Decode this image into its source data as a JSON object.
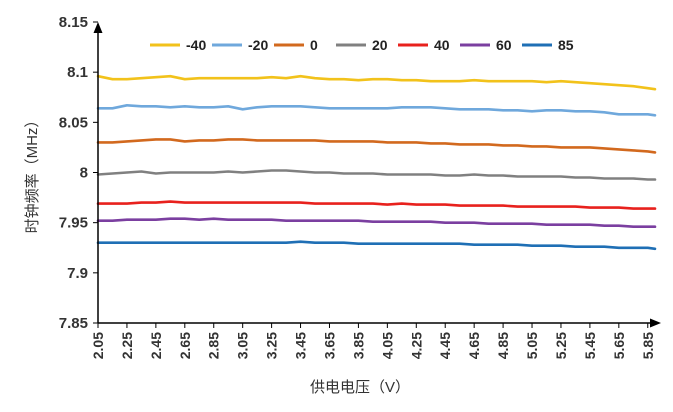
{
  "chart_data": {
    "type": "line",
    "xlabel": "供电电压（V）",
    "ylabel": "时钟频率（MHz）",
    "ylim": [
      7.85,
      8.15
    ],
    "yticks": [
      "8.15",
      "8.1",
      "8.05",
      "8",
      "7.95",
      "7.9",
      "7.85"
    ],
    "xlim": [
      2.05,
      5.9
    ],
    "xticks": [
      "2.05",
      "2.25",
      "2.45",
      "2.65",
      "2.85",
      "3.05",
      "3.25",
      "3.45",
      "3.65",
      "3.85",
      "4.05",
      "4.25",
      "4.45",
      "4.65",
      "4.85",
      "5.05",
      "5.25",
      "5.45",
      "5.65",
      "5.85"
    ],
    "x": [
      2.05,
      2.15,
      2.25,
      2.35,
      2.45,
      2.55,
      2.65,
      2.75,
      2.85,
      2.95,
      3.05,
      3.15,
      3.25,
      3.35,
      3.45,
      3.55,
      3.65,
      3.75,
      3.85,
      3.95,
      4.05,
      4.15,
      4.25,
      4.35,
      4.45,
      4.55,
      4.65,
      4.75,
      4.85,
      4.95,
      5.05,
      5.15,
      5.25,
      5.35,
      5.45,
      5.55,
      5.65,
      5.75,
      5.85,
      5.9
    ],
    "grid": false,
    "legend_position": "top",
    "series": [
      {
        "name": "-40",
        "color": "#f2c21b",
        "values": [
          8.096,
          8.093,
          8.093,
          8.094,
          8.095,
          8.096,
          8.093,
          8.094,
          8.094,
          8.094,
          8.094,
          8.094,
          8.095,
          8.094,
          8.096,
          8.094,
          8.093,
          8.093,
          8.092,
          8.093,
          8.093,
          8.092,
          8.092,
          8.091,
          8.091,
          8.091,
          8.092,
          8.091,
          8.091,
          8.091,
          8.091,
          8.09,
          8.091,
          8.09,
          8.089,
          8.088,
          8.087,
          8.086,
          8.084,
          8.083
        ]
      },
      {
        "name": "-20",
        "color": "#6fa8dc",
        "values": [
          8.064,
          8.064,
          8.067,
          8.066,
          8.066,
          8.065,
          8.066,
          8.065,
          8.065,
          8.066,
          8.063,
          8.065,
          8.066,
          8.066,
          8.066,
          8.065,
          8.064,
          8.064,
          8.064,
          8.064,
          8.064,
          8.065,
          8.065,
          8.065,
          8.064,
          8.063,
          8.063,
          8.063,
          8.062,
          8.062,
          8.061,
          8.062,
          8.062,
          8.061,
          8.061,
          8.06,
          8.058,
          8.058,
          8.058,
          8.057
        ]
      },
      {
        "name": "0",
        "color": "#d2691e",
        "values": [
          8.03,
          8.03,
          8.031,
          8.032,
          8.033,
          8.033,
          8.031,
          8.032,
          8.032,
          8.033,
          8.033,
          8.032,
          8.032,
          8.032,
          8.032,
          8.032,
          8.031,
          8.031,
          8.031,
          8.031,
          8.03,
          8.03,
          8.03,
          8.029,
          8.029,
          8.028,
          8.028,
          8.028,
          8.027,
          8.027,
          8.026,
          8.026,
          8.025,
          8.025,
          8.025,
          8.024,
          8.023,
          8.022,
          8.021,
          8.02
        ]
      },
      {
        "name": "20",
        "color": "#808080",
        "values": [
          7.998,
          7.999,
          8.0,
          8.001,
          7.999,
          8.0,
          8.0,
          8.0,
          8.0,
          8.001,
          8.0,
          8.001,
          8.002,
          8.002,
          8.001,
          8.0,
          8.0,
          7.999,
          7.999,
          7.999,
          7.998,
          7.998,
          7.998,
          7.998,
          7.997,
          7.997,
          7.998,
          7.997,
          7.997,
          7.996,
          7.996,
          7.996,
          7.996,
          7.995,
          7.995,
          7.994,
          7.994,
          7.994,
          7.993,
          7.993
        ]
      },
      {
        "name": "40",
        "color": "#e8211d",
        "values": [
          7.969,
          7.969,
          7.969,
          7.97,
          7.97,
          7.971,
          7.97,
          7.97,
          7.97,
          7.97,
          7.97,
          7.97,
          7.97,
          7.97,
          7.97,
          7.969,
          7.969,
          7.969,
          7.969,
          7.969,
          7.968,
          7.969,
          7.968,
          7.968,
          7.968,
          7.967,
          7.967,
          7.967,
          7.967,
          7.966,
          7.966,
          7.966,
          7.966,
          7.966,
          7.965,
          7.965,
          7.965,
          7.964,
          7.964,
          7.964
        ]
      },
      {
        "name": "60",
        "color": "#7b3fa0",
        "values": [
          7.952,
          7.952,
          7.953,
          7.953,
          7.953,
          7.954,
          7.954,
          7.953,
          7.954,
          7.953,
          7.953,
          7.953,
          7.953,
          7.952,
          7.952,
          7.952,
          7.952,
          7.952,
          7.952,
          7.951,
          7.951,
          7.951,
          7.951,
          7.951,
          7.95,
          7.95,
          7.95,
          7.949,
          7.949,
          7.949,
          7.949,
          7.948,
          7.948,
          7.948,
          7.948,
          7.947,
          7.947,
          7.946,
          7.946,
          7.946
        ]
      },
      {
        "name": "85",
        "color": "#1f6fb5",
        "values": [
          7.93,
          7.93,
          7.93,
          7.93,
          7.93,
          7.93,
          7.93,
          7.93,
          7.93,
          7.93,
          7.93,
          7.93,
          7.93,
          7.93,
          7.931,
          7.93,
          7.93,
          7.93,
          7.929,
          7.929,
          7.929,
          7.929,
          7.929,
          7.929,
          7.929,
          7.929,
          7.928,
          7.928,
          7.928,
          7.928,
          7.927,
          7.927,
          7.927,
          7.926,
          7.926,
          7.926,
          7.925,
          7.925,
          7.925,
          7.924
        ]
      }
    ]
  }
}
